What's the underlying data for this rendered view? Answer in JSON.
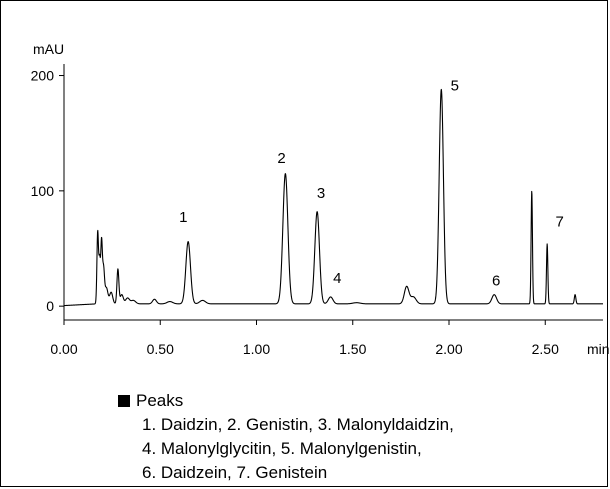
{
  "chart_data": {
    "type": "line",
    "ylabel": "mAU",
    "xlabel": "min",
    "xlim": [
      0.0,
      2.8
    ],
    "ylim": [
      -12,
      210
    ],
    "x_ticks": [
      0.0,
      0.5,
      1.0,
      1.5,
      2.0,
      2.5
    ],
    "x_tick_labels": [
      "0.00",
      "0.50",
      "1.00",
      "1.50",
      "2.00",
      "2.50"
    ],
    "y_ticks": [
      0,
      100,
      200
    ],
    "y_tick_labels": [
      "0",
      "100",
      "200"
    ],
    "baseline": 2,
    "series": [
      {
        "peaks": [
          {
            "t": 0.175,
            "h": 62,
            "w": 0.004
          },
          {
            "t": 0.185,
            "h": 38,
            "w": 0.004
          },
          {
            "t": 0.195,
            "h": 52,
            "w": 0.004
          },
          {
            "t": 0.205,
            "h": 30,
            "w": 0.005
          },
          {
            "t": 0.22,
            "h": 14,
            "w": 0.008
          },
          {
            "t": 0.245,
            "h": 10,
            "w": 0.008
          },
          {
            "t": 0.28,
            "h": 30,
            "w": 0.005
          },
          {
            "t": 0.3,
            "h": 8,
            "w": 0.008
          },
          {
            "t": 0.33,
            "h": 5,
            "w": 0.01
          },
          {
            "t": 0.36,
            "h": 3,
            "w": 0.012
          },
          {
            "t": 0.47,
            "h": 4,
            "w": 0.01
          },
          {
            "t": 0.55,
            "h": 2,
            "w": 0.015
          },
          {
            "t": 0.645,
            "h": 54,
            "w": 0.012
          },
          {
            "t": 0.72,
            "h": 3,
            "w": 0.015
          },
          {
            "t": 1.15,
            "h": 113,
            "w": 0.013
          },
          {
            "t": 1.315,
            "h": 80,
            "w": 0.012
          },
          {
            "t": 1.385,
            "h": 6,
            "w": 0.012
          },
          {
            "t": 1.52,
            "h": 1,
            "w": 0.02
          },
          {
            "t": 1.78,
            "h": 15,
            "w": 0.012
          },
          {
            "t": 1.815,
            "h": 6,
            "w": 0.014
          },
          {
            "t": 1.96,
            "h": 186,
            "w": 0.011
          },
          {
            "t": 2.235,
            "h": 8,
            "w": 0.012
          },
          {
            "t": 2.43,
            "h": 98,
            "w": 0.0035
          },
          {
            "t": 2.51,
            "h": 52,
            "w": 0.0035
          },
          {
            "t": 2.655,
            "h": 8,
            "w": 0.004
          }
        ]
      }
    ],
    "peak_labels": [
      {
        "text": "1",
        "x": 0.62,
        "y": 73
      },
      {
        "text": "2",
        "x": 1.13,
        "y": 124
      },
      {
        "text": "3",
        "x": 1.335,
        "y": 94
      },
      {
        "text": "4",
        "x": 1.42,
        "y": 20
      },
      {
        "text": "5",
        "x": 2.03,
        "y": 187
      },
      {
        "text": "6",
        "x": 2.245,
        "y": 18
      },
      {
        "text": "7",
        "x": 2.575,
        "y": 69
      }
    ]
  },
  "legend": {
    "title": "Peaks",
    "lines": [
      "1. Daidzin, 2. Genistin, 3. Malonyldaidzin,",
      "4. Malonylglycitin, 5. Malonylgenistin,",
      "6. Daidzein, 7. Genistein"
    ]
  }
}
